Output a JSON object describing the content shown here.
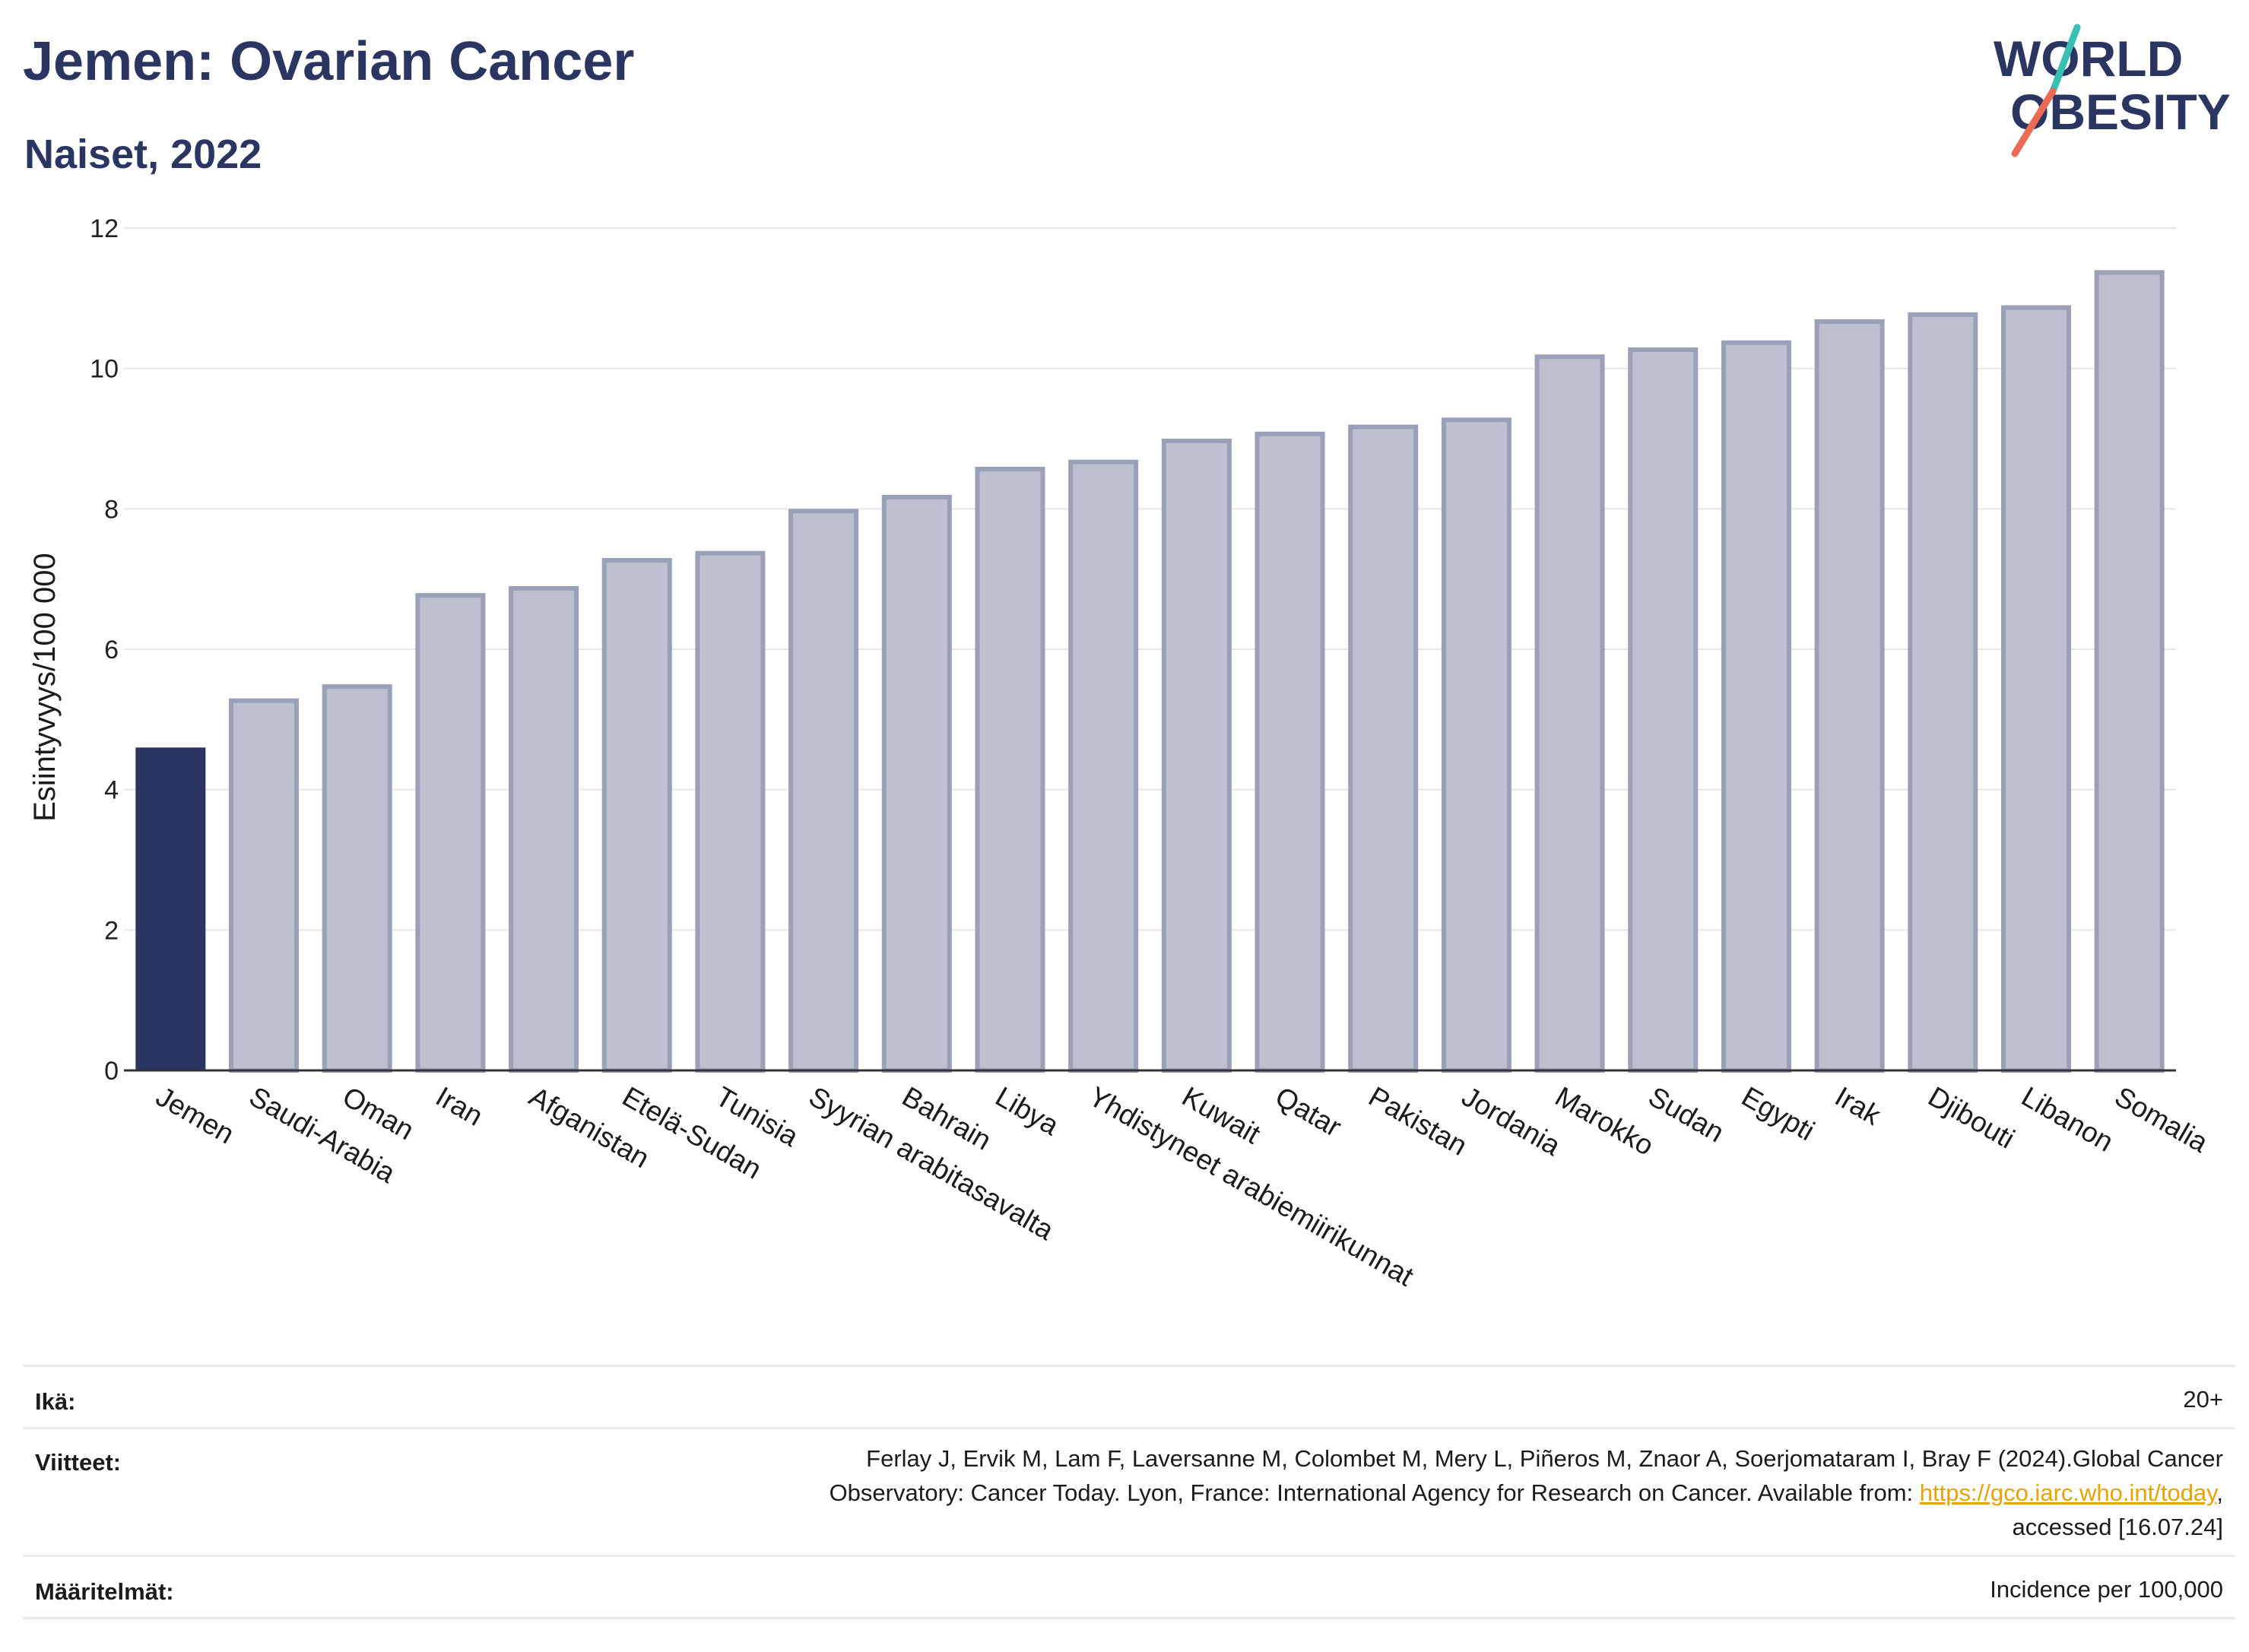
{
  "header": {
    "title": "Jemen: Ovarian Cancer",
    "subtitle": "Naiset, 2022"
  },
  "logo": {
    "line1": "WORLD",
    "line2": "OBESITY",
    "colors": {
      "text": "#2b3562",
      "slash_teal": "#3bbfb4",
      "slash_coral": "#ec6b55"
    }
  },
  "chart_data": {
    "type": "bar",
    "title": "Jemen: Ovarian Cancer",
    "subtitle": "Naiset, 2022",
    "xlabel": "",
    "ylabel": "Esiintyvyys/100 000",
    "ylim": [
      0,
      12
    ],
    "yticks": [
      0,
      2,
      4,
      6,
      8,
      10,
      12
    ],
    "grid": true,
    "categories": [
      "Jemen",
      "Saudi-Arabia",
      "Oman",
      "Iran",
      "Afganistan",
      "Etelä-Sudan",
      "Tunisia",
      "Syyrian arabitasavalta",
      "Bahrain",
      "Libya",
      "Yhdistyneet arabiemiirikunnat",
      "Kuwait",
      "Qatar",
      "Pakistan",
      "Jordania",
      "Marokko",
      "Sudan",
      "Egypti",
      "Irak",
      "Djibouti",
      "Libanon",
      "Somalia"
    ],
    "values": [
      4.6,
      5.3,
      5.5,
      6.8,
      6.9,
      7.3,
      7.4,
      8.0,
      8.2,
      8.6,
      8.7,
      9.0,
      9.1,
      9.2,
      9.3,
      10.2,
      10.3,
      10.4,
      10.7,
      10.8,
      10.9,
      11.4
    ],
    "highlight": "Jemen",
    "colors": {
      "highlight": "#2b3562",
      "others": "#bdc0ce",
      "others_border": "#9aa0b8",
      "grid": "#e6e6e6",
      "axis": "#333333"
    }
  },
  "info": {
    "age_label": "Ikä:",
    "age_value": "20+",
    "refs_label": "Viitteet:",
    "refs_line1": "Ferlay J, Ervik M, Lam F, Laversanne M, Colombet M, Mery L, Piñeros M, Znaor A, Soerjomataram I, Bray F (2024).Global Cancer",
    "refs_line2_text": "Observatory: Cancer Today. Lyon, France: International Agency for Research on Cancer. Available from: ",
    "refs_link": "https://gco.iarc.who.int/today",
    "refs_line2_end": ",",
    "refs_line3": "accessed [16.07.24]",
    "defs_label": "Määritelmät:",
    "defs_value": "Incidence per 100,000"
  }
}
